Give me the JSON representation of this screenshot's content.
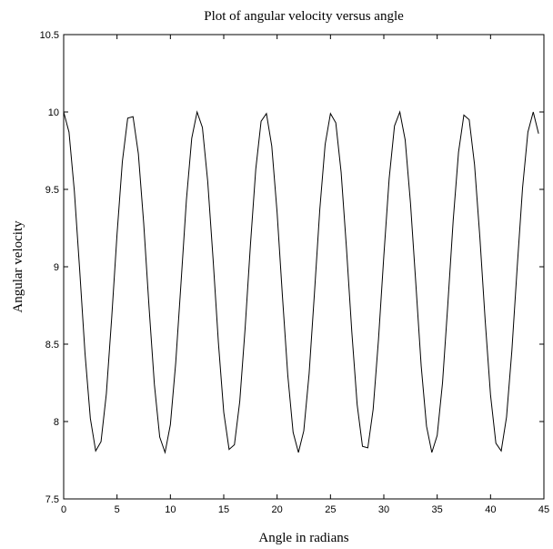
{
  "chart_data": {
    "type": "line",
    "title": "Plot of angular velocity versus angle",
    "x_label": "Angle in radians",
    "y_label": "Angular velocity",
    "x": [
      0,
      0.5,
      1,
      1.5,
      2,
      2.5,
      3,
      3.5,
      4,
      4.5,
      5,
      5.5,
      6,
      6.5,
      7,
      7.5,
      8,
      8.5,
      9,
      9.5,
      10,
      10.5,
      11,
      11.5,
      12,
      12.5,
      13,
      13.5,
      14,
      14.5,
      15,
      15.5,
      16,
      16.5,
      17,
      17.5,
      18,
      18.5,
      19,
      19.5,
      20,
      20.5,
      21,
      21.5,
      22,
      22.5,
      23,
      23.5,
      24,
      24.5,
      25,
      25.5,
      26,
      26.5,
      27,
      27.5,
      28,
      28.5,
      29,
      29.5,
      30,
      30.5,
      31,
      31.5,
      32,
      32.5,
      33,
      33.5,
      34,
      34.5,
      35,
      35.5,
      36,
      36.5,
      37,
      37.5,
      38,
      38.5,
      39,
      39.5,
      40,
      40.5,
      41,
      41.5,
      42,
      42.5,
      43,
      43.5,
      44,
      44.5
    ],
    "series": [
      {
        "color": "#000000",
        "values": [
          10.0,
          9.87,
          9.49,
          8.98,
          8.44,
          8.02,
          7.81,
          7.87,
          8.18,
          8.67,
          9.21,
          9.68,
          9.96,
          9.97,
          9.73,
          9.28,
          8.74,
          8.24,
          7.9,
          7.8,
          7.98,
          8.38,
          8.9,
          9.43,
          9.83,
          10.0,
          9.9,
          9.55,
          9.05,
          8.51,
          8.06,
          7.82,
          7.85,
          8.13,
          8.6,
          9.14,
          9.63,
          9.94,
          9.99,
          9.78,
          9.35,
          8.81,
          8.3,
          7.93,
          7.8,
          7.94,
          8.31,
          8.83,
          9.37,
          9.79,
          9.99,
          9.93,
          9.61,
          9.12,
          8.58,
          8.11,
          7.84,
          7.83,
          8.08,
          8.53,
          9.07,
          9.57,
          9.91,
          10.0,
          9.82,
          9.41,
          8.89,
          8.36,
          7.97,
          7.8,
          7.91,
          8.25,
          8.76,
          9.3,
          9.74,
          9.98,
          9.95,
          9.66,
          9.19,
          8.65,
          8.17,
          7.86,
          7.81,
          8.03,
          8.46,
          9.0,
          9.51,
          9.87,
          10.0,
          9.86
        ]
      }
    ],
    "xlim": [
      0,
      45
    ],
    "xticks": [
      0,
      5,
      10,
      15,
      20,
      25,
      30,
      35,
      40,
      45
    ],
    "ylim": [
      7.5,
      10.5
    ],
    "yticks": [
      7.5,
      8,
      8.5,
      9,
      9.5,
      10,
      10.5
    ]
  }
}
